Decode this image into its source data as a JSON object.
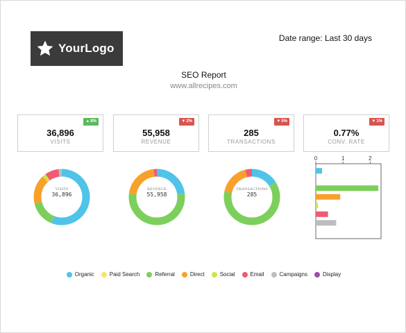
{
  "logo": {
    "text": "YourLogo",
    "icon": "star-icon"
  },
  "date_range": "Date range: Last 30 days",
  "report": {
    "title": "SEO Report",
    "site": "www.allrecipes.com"
  },
  "kpis": [
    {
      "value": "36,896",
      "label": "VISITS",
      "change": "8%",
      "direction": "up"
    },
    {
      "value": "55,958",
      "label": "REVENUE",
      "change": "2%",
      "direction": "down"
    },
    {
      "value": "285",
      "label": "TRANSACTIONS",
      "change": "5%",
      "direction": "down"
    },
    {
      "value": "0.77%",
      "label": "CONV. RATE",
      "change": "1%",
      "direction": "down"
    }
  ],
  "donuts": [
    {
      "label": "VISITS",
      "value": "36,896"
    },
    {
      "label": "REVENUE",
      "value": "55,958"
    },
    {
      "label": "TRANSACTIONS",
      "value": "285"
    }
  ],
  "colors": {
    "Organic": "#4fc3e8",
    "Paid Search": "#f7e36b",
    "Referral": "#7ccf5b",
    "Direct": "#f7a12c",
    "Social": "#d4e24a",
    "Email": "#f05a73",
    "Campaigns": "#bdbdbd",
    "Display": "#9b4fa8"
  },
  "chart_data": [
    {
      "type": "pie",
      "categories": [
        "Organic",
        "Referral",
        "Direct",
        "Social",
        "Email",
        "Campaigns"
      ],
      "values": [
        56,
        15,
        17,
        2,
        8,
        2
      ]
    },
    {
      "type": "pie",
      "categories": [
        "Organic",
        "Referral",
        "Direct",
        "Email"
      ],
      "values": [
        23,
        54,
        21,
        2
      ]
    },
    {
      "type": "pie",
      "categories": [
        "Organic",
        "Referral",
        "Direct",
        "Email"
      ],
      "values": [
        16,
        62,
        18,
        4
      ]
    },
    {
      "type": "bar",
      "orientation": "horizontal",
      "categories": [
        "Organic",
        "Paid Search",
        "Referral",
        "Direct",
        "Social",
        "Email",
        "Campaigns",
        "Display"
      ],
      "values": [
        0.23,
        0,
        2.3,
        0.9,
        0.08,
        0.45,
        0.75,
        0
      ],
      "tick_labels": [
        "0",
        "1",
        "2"
      ],
      "xlim": [
        0,
        2.4
      ]
    }
  ],
  "legend": [
    "Organic",
    "Paid Search",
    "Referral",
    "Direct",
    "Social",
    "Email",
    "Campaigns",
    "Display"
  ]
}
